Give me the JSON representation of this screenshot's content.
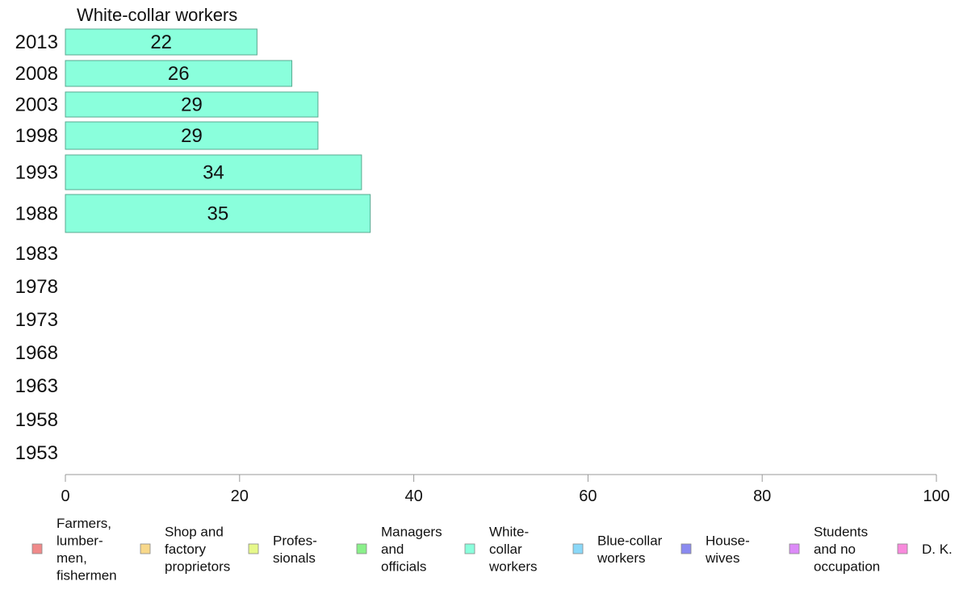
{
  "chart_data": {
    "type": "bar",
    "orientation": "horizontal",
    "title": "White-collar workers",
    "categories": [
      "2013",
      "2008",
      "2003",
      "1998",
      "1993",
      "1988",
      "1983",
      "1978",
      "1973",
      "1968",
      "1963",
      "1958",
      "1953"
    ],
    "series": [
      {
        "name": "White-collar workers",
        "color": "#8affdc",
        "values": [
          22,
          26,
          29,
          29,
          34,
          35,
          null,
          null,
          null,
          null,
          null,
          null,
          null
        ],
        "labels": [
          "22",
          "26",
          "29",
          "29",
          "34",
          "35",
          "",
          "",
          "",
          "",
          "",
          "",
          ""
        ]
      }
    ],
    "xlim": [
      0,
      100
    ],
    "xticks": [
      "0",
      "20",
      "40",
      "60",
      "80",
      "100"
    ],
    "grid": false,
    "legend_position": "bottom",
    "legend": [
      {
        "lines": [
          "Farmers,",
          "lumber-",
          "men,",
          "fishermen"
        ],
        "color": "#f08a8a"
      },
      {
        "lines": [
          "Shop and",
          "factory",
          "proprietors"
        ],
        "color": "#f8d88a"
      },
      {
        "lines": [
          "Profes-",
          "sionals"
        ],
        "color": "#e6f88a"
      },
      {
        "lines": [
          "Managers",
          "and",
          "officials"
        ],
        "color": "#8af08a"
      },
      {
        "lines": [
          "White-",
          "collar",
          "workers"
        ],
        "color": "#8affdc"
      },
      {
        "lines": [
          "Blue-collar",
          "workers"
        ],
        "color": "#8ad8f8"
      },
      {
        "lines": [
          "House-",
          "wives"
        ],
        "color": "#8a8af0"
      },
      {
        "lines": [
          "Students",
          "and no",
          "occupation"
        ],
        "color": "#dc8af8"
      },
      {
        "lines": [
          "D. K."
        ],
        "color": "#f88adc"
      }
    ]
  }
}
